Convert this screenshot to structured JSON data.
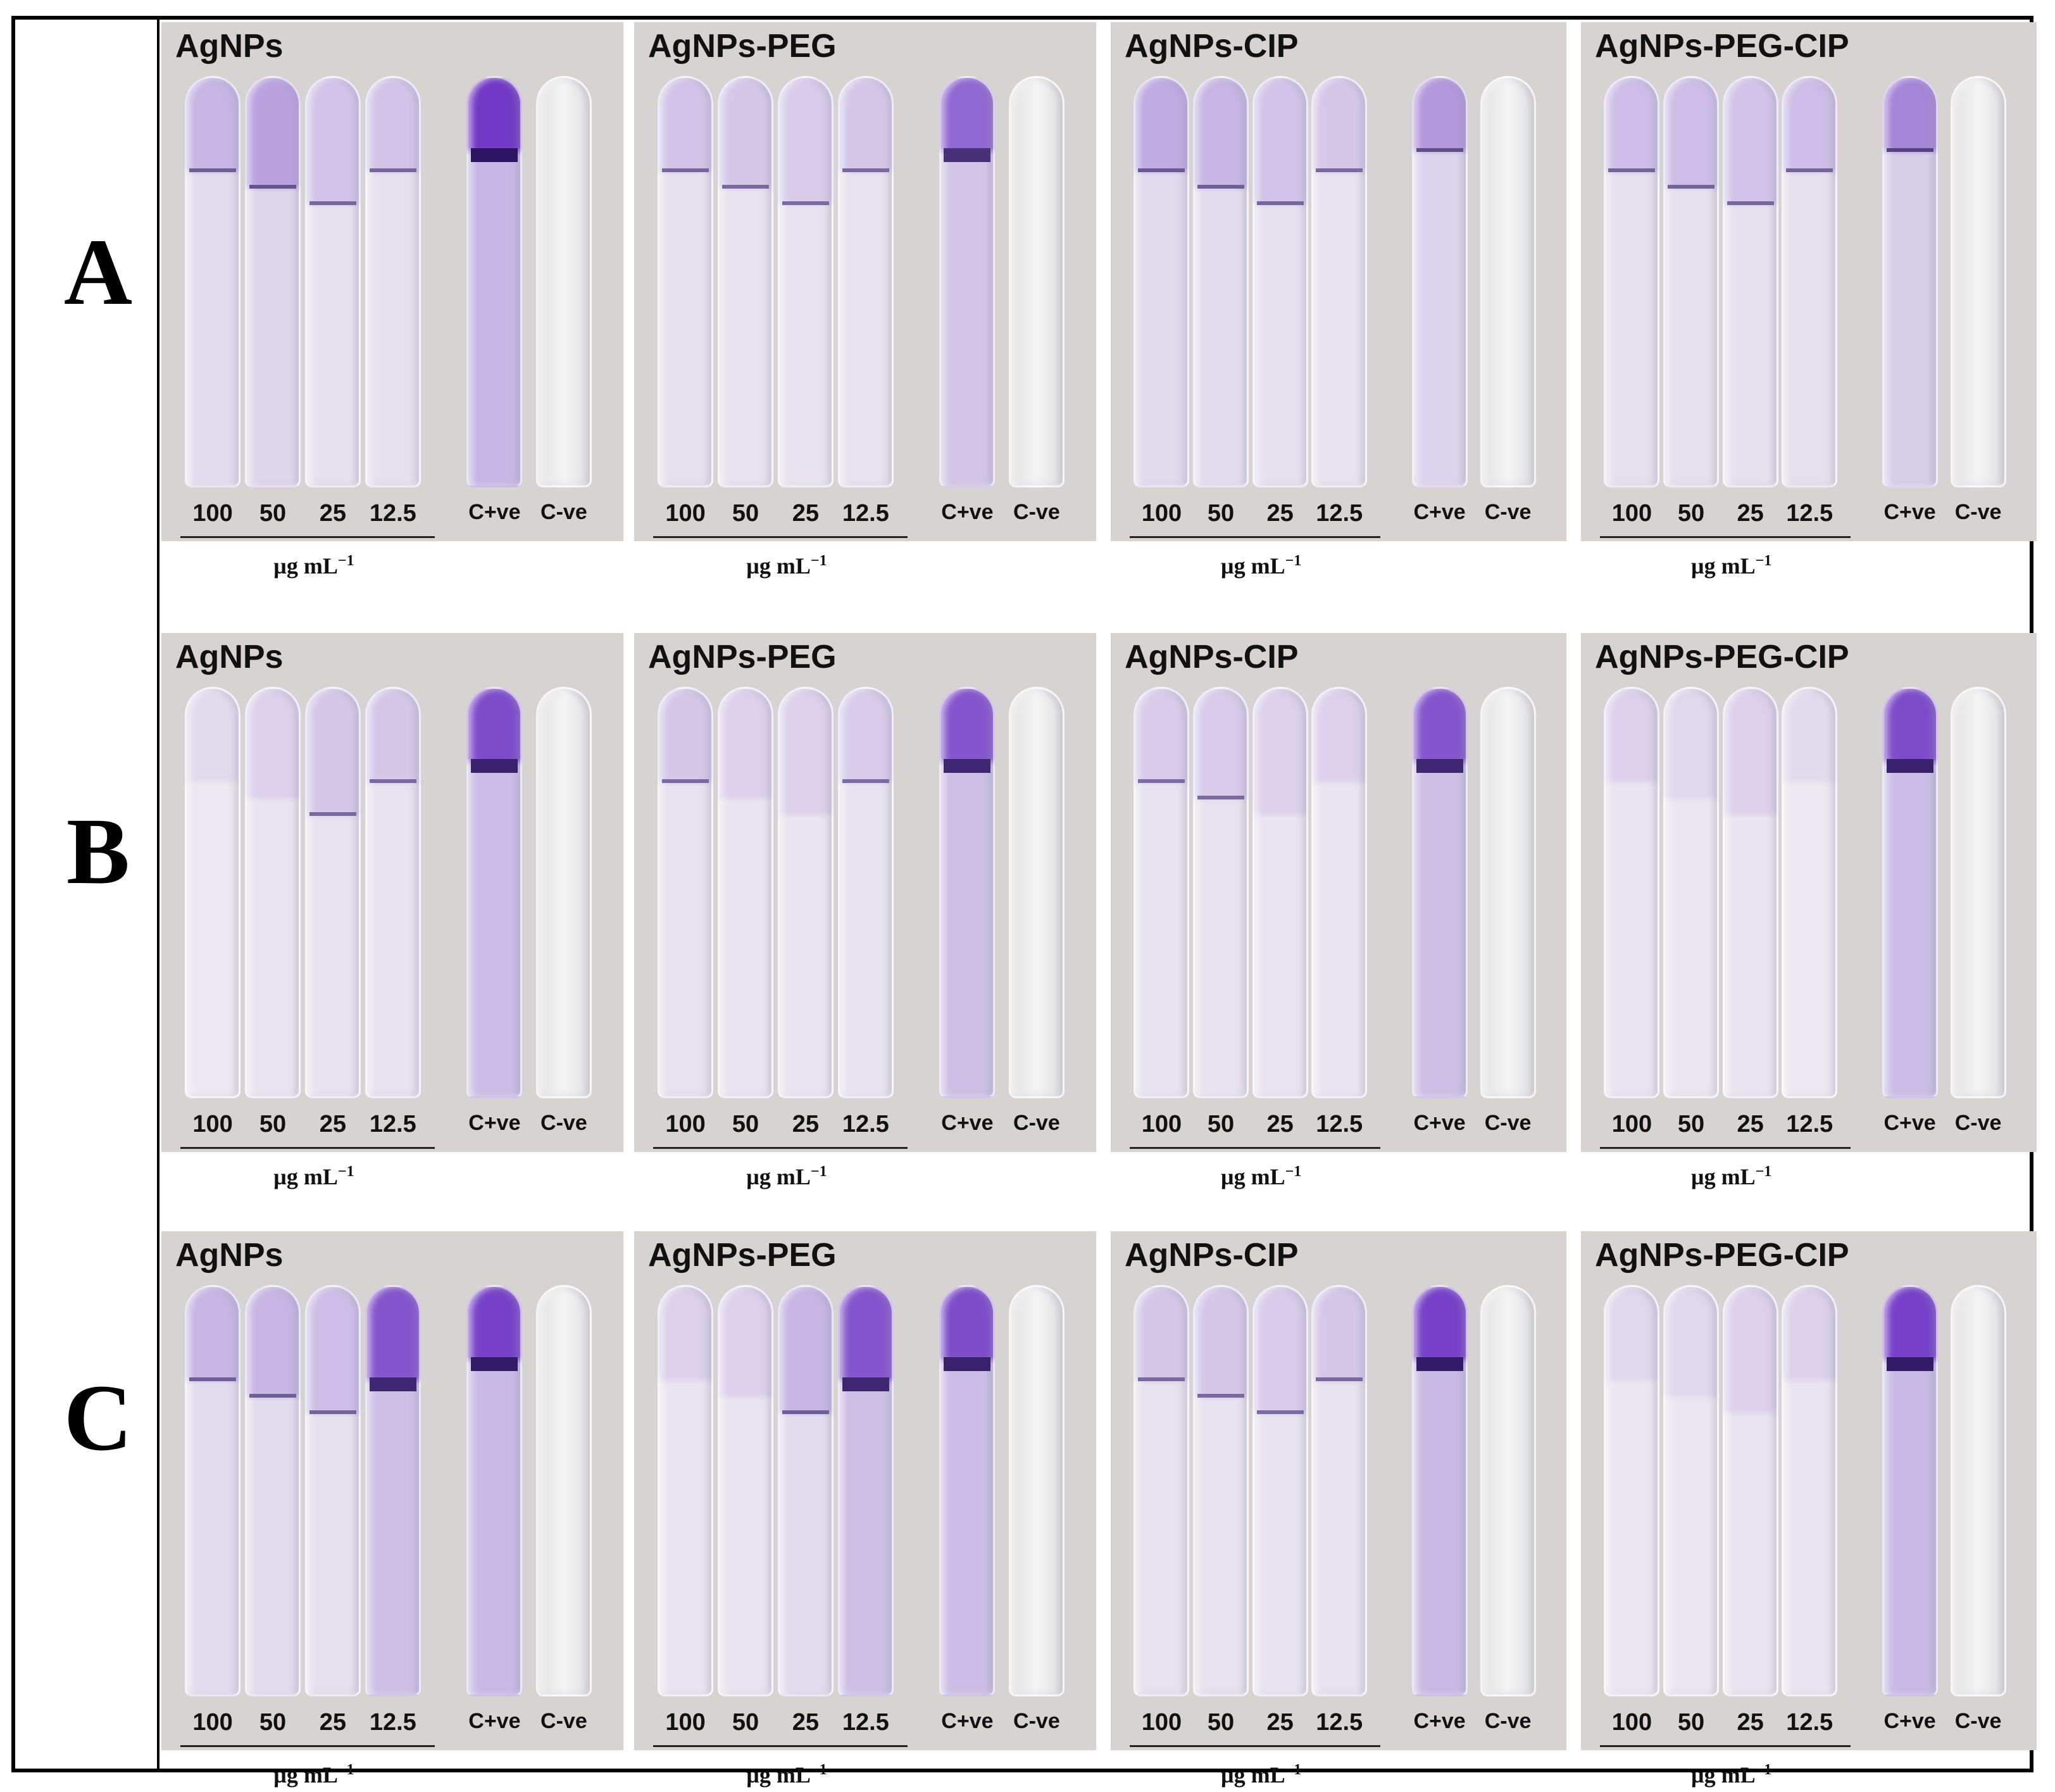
{
  "rows": [
    {
      "letter": "A"
    },
    {
      "letter": "B"
    },
    {
      "letter": "C"
    }
  ],
  "panel_titles": [
    "AgNPs",
    "AgNPs-PEG",
    "AgNPs-CIP",
    "AgNPs-PEG-CIP"
  ],
  "tube_labels": [
    "100",
    "50",
    "25",
    "12.5",
    "C+ve",
    "C-ve"
  ],
  "units_label": "µg mL",
  "units_exponent": "−1",
  "colors": {
    "background": "#d6d3d2",
    "crystal_violet_strong": "#6a2fc4",
    "crystal_violet_light": "#b9a6e0",
    "negative_control": "#eeeeee"
  },
  "stain_levels": [
    [
      [
        0.3,
        0.4,
        0.22,
        0.22,
        0.95,
        0.05
      ],
      [
        0.22,
        0.2,
        0.18,
        0.2,
        0.7,
        0.05
      ],
      [
        0.35,
        0.3,
        0.22,
        0.2,
        0.45,
        0.05
      ],
      [
        0.25,
        0.25,
        0.22,
        0.25,
        0.55,
        0.05
      ]
    ],
    [
      [
        0.1,
        0.15,
        0.2,
        0.2,
        0.85,
        0.05
      ],
      [
        0.2,
        0.15,
        0.15,
        0.18,
        0.8,
        0.05
      ],
      [
        0.18,
        0.18,
        0.15,
        0.15,
        0.8,
        0.05
      ],
      [
        0.15,
        0.12,
        0.15,
        0.1,
        0.85,
        0.05
      ]
    ],
    [
      [
        0.3,
        0.3,
        0.25,
        0.8,
        0.9,
        0.05
      ],
      [
        0.15,
        0.15,
        0.3,
        0.8,
        0.85,
        0.05
      ],
      [
        0.2,
        0.2,
        0.18,
        0.2,
        0.9,
        0.05
      ],
      [
        0.12,
        0.12,
        0.15,
        0.15,
        0.9,
        0.05
      ]
    ]
  ]
}
